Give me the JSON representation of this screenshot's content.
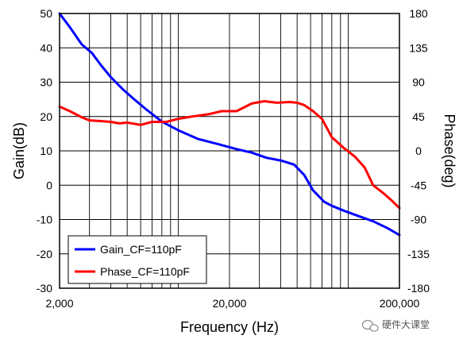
{
  "chart_data": {
    "type": "line",
    "title": "",
    "xlabel": "Frequency (Hz)",
    "ylabel_left": "Gain(dB)",
    "ylabel_right": "Phase(deg)",
    "x_scale": "log",
    "xlim": [
      2000,
      200000
    ],
    "ylim_left": [
      -30,
      50
    ],
    "ylim_right": [
      -180,
      180
    ],
    "x_tick_labels": [
      "2,000",
      "20,000",
      "200,000"
    ],
    "x_tick_values": [
      2000,
      20000,
      200000
    ],
    "y_left_ticks": [
      -30,
      -20,
      -10,
      0,
      10,
      20,
      30,
      40,
      50
    ],
    "y_right_ticks": [
      -180,
      -135,
      -90,
      -45,
      0,
      45,
      90,
      135,
      180
    ],
    "grid": true,
    "legend_position": "bottom-left",
    "series": [
      {
        "name": "Gain_CF=110pF",
        "axis": "left",
        "color": "#0000ff",
        "x": [
          2000,
          2300,
          2700,
          3100,
          3500,
          4000,
          4700,
          5500,
          6500,
          8000,
          10000,
          13000,
          17000,
          22000,
          27000,
          33000,
          40000,
          48000,
          55000,
          62000,
          68000,
          72000,
          80000,
          95000,
          115000,
          140000,
          170000,
          200000
        ],
        "y": [
          50,
          46,
          41,
          38.5,
          35,
          31.5,
          28,
          25,
          22,
          18.5,
          16,
          13.5,
          12,
          10.5,
          9.5,
          8,
          7.2,
          6,
          3,
          -1.5,
          -3.5,
          -4.8,
          -6,
          -7.5,
          -9,
          -10.5,
          -12.5,
          -14.5
        ]
      },
      {
        "name": "Phase_CF=110pF",
        "axis": "right",
        "color": "#ff0000",
        "x": [
          2000,
          2300,
          2700,
          3000,
          3500,
          4000,
          4500,
          5000,
          6000,
          7000,
          8500,
          10000,
          12000,
          15000,
          18000,
          22000,
          27000,
          32000,
          38000,
          45000,
          50000,
          55000,
          62000,
          70000,
          80000,
          95000,
          110000,
          125000,
          140000,
          160000,
          180000,
          200000
        ],
        "y": [
          58,
          52,
          44,
          40,
          39,
          38,
          36,
          37,
          34,
          38,
          38,
          42,
          45,
          48,
          52,
          52,
          62,
          65,
          63,
          64,
          63,
          60,
          52,
          42,
          18,
          3,
          -8,
          -22,
          -45,
          -55,
          -65,
          -75
        ]
      }
    ]
  },
  "watermark": {
    "icon": "wechat-icon",
    "text": "硬件大课堂"
  }
}
